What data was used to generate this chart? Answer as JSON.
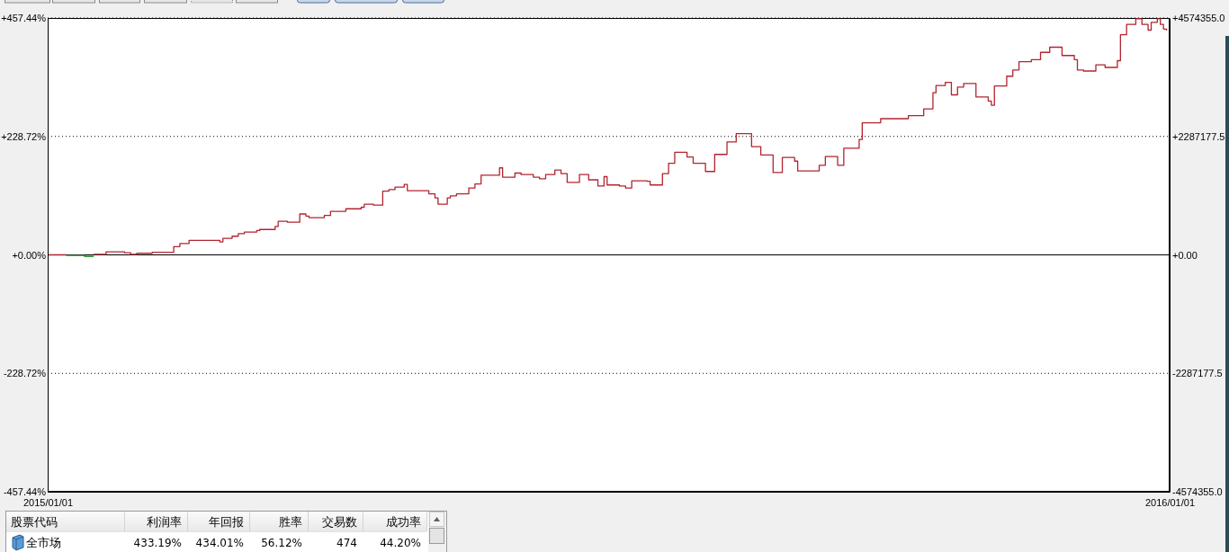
{
  "chart_data": [
    {
      "type": "step",
      "x": [
        "2015-01-01",
        "2015-01-07",
        "2015-01-11",
        "2015-01-16",
        "2015-01-20",
        "2015-01-26",
        "2015-01-28",
        "2015-01-30",
        "2015-02-04",
        "2015-02-11",
        "2015-02-13",
        "2015-02-16",
        "2015-02-26",
        "2015-02-27",
        "2015-03-02",
        "2015-03-04",
        "2015-03-06",
        "2015-03-10",
        "2015-03-11",
        "2015-03-16",
        "2015-03-17",
        "2015-03-20",
        "2015-03-24",
        "2015-03-26",
        "2015-03-27",
        "2015-04-01",
        "2015-04-03",
        "2015-04-08",
        "2015-04-13",
        "2015-04-14",
        "2015-04-17",
        "2015-04-20",
        "2015-04-22",
        "2015-04-24",
        "2015-04-27",
        "2015-04-28",
        "2015-05-05",
        "2015-05-07",
        "2015-05-08",
        "2015-05-11",
        "2015-05-12",
        "2015-05-14",
        "2015-05-18",
        "2015-05-20",
        "2015-05-22",
        "2015-05-28",
        "2015-05-29",
        "2015-06-02",
        "2015-06-04",
        "2015-06-08",
        "2015-06-10",
        "2015-06-12",
        "2015-06-15",
        "2015-06-17",
        "2015-06-19",
        "2015-06-23",
        "2015-06-26",
        "2015-06-29",
        "2015-07-01",
        "2015-07-02",
        "2015-07-06",
        "2015-07-08",
        "2015-07-10",
        "2015-07-15",
        "2015-07-16",
        "2015-07-20",
        "2015-07-22",
        "2015-07-24",
        "2015-07-28",
        "2015-07-30",
        "2015-08-03",
        "2015-08-06",
        "2015-08-10",
        "2015-08-13",
        "2015-08-18",
        "2015-08-21",
        "2015-08-25",
        "2015-08-28",
        "2015-09-01",
        "2015-09-02",
        "2015-09-09",
        "2015-09-11",
        "2015-09-15",
        "2015-09-17",
        "2015-09-22",
        "2015-09-23",
        "2015-09-29",
        "2015-10-08",
        "2015-10-13",
        "2015-10-16",
        "2015-10-17",
        "2015-10-20",
        "2015-10-22",
        "2015-10-24",
        "2015-10-26",
        "2015-10-30",
        "2015-11-03",
        "2015-11-04",
        "2015-11-05",
        "2015-11-09",
        "2015-11-11",
        "2015-11-13",
        "2015-11-17",
        "2015-11-20",
        "2015-11-23",
        "2015-11-27",
        "2015-12-01",
        "2015-12-02",
        "2015-12-04",
        "2015-12-08",
        "2015-12-11",
        "2015-12-15",
        "2015-12-16",
        "2015-12-18",
        "2015-12-21",
        "2015-12-23",
        "2015-12-25",
        "2015-12-26",
        "2015-12-28",
        "2015-12-29",
        "2015-12-30",
        "2015-12-31"
      ],
      "series": [
        {
          "color": "#b22430",
          "values": [
            0,
            0,
            null,
            1,
            6,
            4,
            1,
            3,
            5,
            16,
            22,
            28,
            25,
            32,
            36,
            41,
            44,
            47,
            49,
            55,
            65,
            63,
            79,
            75,
            72,
            76,
            84,
            89,
            92,
            98,
            96,
            123,
            126,
            131,
            136,
            124,
            118,
            110,
            98,
            110,
            114,
            118,
            129,
            137,
            154,
            168,
            150,
            158,
            155,
            150,
            147,
            155,
            164,
            157,
            140,
            155,
            145,
            133,
            151,
            135,
            133,
            129,
            143,
            142,
            135,
            157,
            177,
            198,
            189,
            177,
            161,
            194,
            218,
            234,
            209,
            193,
            159,
            188,
            181,
            162,
            173,
            190,
            173,
            206,
            223,
            255,
            263,
            269,
            282,
            313,
            327,
            333,
            309,
            324,
            331,
            305,
            297,
            289,
            326,
            345,
            357,
            373,
            377,
            391,
            401,
            385,
            377,
            357,
            355,
            367,
            362,
            375,
            425,
            445,
            456,
            445,
            434,
            449,
            456,
            445,
            436,
            433
          ]
        },
        {
          "color": "#2e8b2e",
          "x": [
            "2015-01-07",
            "2015-01-11",
            "2015-01-13",
            "2015-01-16"
          ],
          "values": [
            -1,
            -1,
            -3,
            -3
          ]
        }
      ],
      "xlim": [
        "2015-01-01",
        "2016-01-01"
      ],
      "xticks": [
        {
          "value": "2015-01-01",
          "label": "2015/01/01"
        },
        {
          "value": "2016-01-01",
          "label": "2016/01/01"
        }
      ],
      "ylim": [
        -457.44,
        457.44
      ],
      "yticks": [
        {
          "value": 457.44,
          "label": "+457.44%"
        },
        {
          "value": 228.72,
          "label": "+228.72%"
        },
        {
          "value": 0,
          "label": "+0.00%"
        },
        {
          "value": -228.72,
          "label": "-228.72%"
        },
        {
          "value": -457.44,
          "label": "-457.44%"
        }
      ],
      "y2lim": [
        -4574355,
        4574355
      ],
      "y2ticks": [
        {
          "value": 4574355,
          "label": "+4574355.0"
        },
        {
          "value": 2287177.5,
          "label": "+2287177.5"
        },
        {
          "value": 0,
          "label": "+0.00"
        },
        {
          "value": -2287177.5,
          "label": "-2287177.5"
        },
        {
          "value": -4574355,
          "label": "-4574355.0"
        }
      ],
      "grid": "y",
      "ref_lines": [
        {
          "axis": "y",
          "value": 0,
          "color": "#000000"
        }
      ]
    },
    {
      "type": "other",
      "annotations": [
        "股票代码",
        "利润率",
        "年回报",
        "胜率",
        "交易数",
        "成功率",
        "全市场",
        "433.19%",
        "434.01%",
        "56.12%",
        "474",
        "44.20%"
      ]
    }
  ]
}
